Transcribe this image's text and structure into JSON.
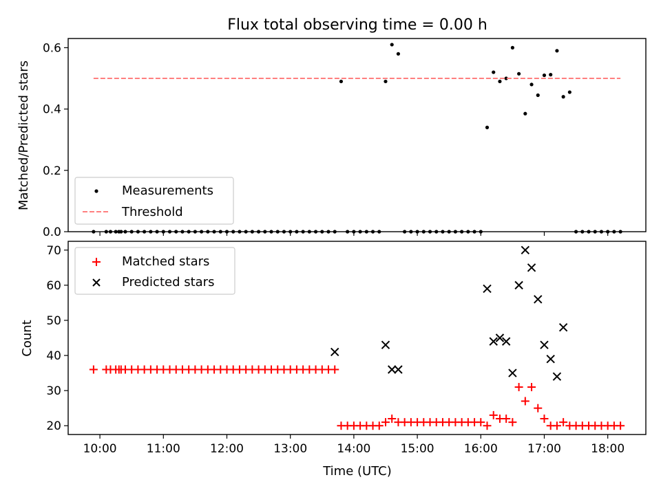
{
  "title": "Flux total observing time = 0.00 h",
  "colors": {
    "measurement": "#000000",
    "threshold": "#ff7f7f",
    "matched": "#ff0000",
    "predicted": "#000000",
    "axes": "#000000",
    "legend_border": "#cccccc"
  },
  "chart_data": [
    {
      "type": "scatter",
      "ylabel": "Matched/Predicted stars",
      "xlabel": "",
      "ylim": [
        0,
        0.63
      ],
      "xlim": [
        "09:30",
        "18:36"
      ],
      "yticks": [
        0.0,
        0.2,
        0.4,
        0.6
      ],
      "ytick_labels": [
        "0.0",
        "0.2",
        "0.4",
        "0.6"
      ],
      "xtick_values": [
        "10:00",
        "11:00",
        "12:00",
        "13:00",
        "14:00",
        "15:00",
        "16:00",
        "17:00",
        "18:00"
      ],
      "grid": false,
      "legend": {
        "placement": "lower-left",
        "entries": [
          "Measurements",
          "Threshold"
        ]
      },
      "series": [
        {
          "name": "Measurements",
          "marker": "dot",
          "x": [
            "09:54",
            "10:06",
            "10:10",
            "10:15",
            "10:18",
            "10:20",
            "10:24",
            "10:30",
            "10:36",
            "10:42",
            "10:48",
            "10:54",
            "11:00",
            "11:06",
            "11:12",
            "11:18",
            "11:24",
            "11:30",
            "11:36",
            "11:42",
            "11:48",
            "11:54",
            "12:00",
            "12:06",
            "12:12",
            "12:18",
            "12:24",
            "12:30",
            "12:36",
            "12:42",
            "12:48",
            "12:54",
            "13:00",
            "13:06",
            "13:12",
            "13:18",
            "13:24",
            "13:30",
            "13:36",
            "13:42",
            "13:48",
            "13:54",
            "14:00",
            "14:06",
            "14:12",
            "14:18",
            "14:24",
            "14:30",
            "14:36",
            "14:42",
            "14:48",
            "14:54",
            "15:00",
            "15:06",
            "15:12",
            "15:18",
            "15:24",
            "15:30",
            "15:36",
            "15:42",
            "15:48",
            "15:54",
            "16:00",
            "16:06",
            "16:12",
            "16:18",
            "16:24",
            "16:30",
            "16:36",
            "16:42",
            "16:48",
            "16:54",
            "17:00",
            "17:06",
            "17:12",
            "17:18",
            "17:24",
            "17:30",
            "17:36",
            "17:42",
            "17:48",
            "17:54",
            "18:00",
            "18:06",
            "18:12"
          ],
          "y": [
            0,
            0,
            0,
            0,
            0,
            0,
            0,
            0,
            0,
            0,
            0,
            0,
            0,
            0,
            0,
            0,
            0,
            0,
            0,
            0,
            0,
            0,
            0,
            0,
            0,
            0,
            0,
            0,
            0,
            0,
            0,
            0,
            0,
            0,
            0,
            0,
            0,
            0,
            0,
            0,
            0.49,
            0,
            0,
            0,
            0,
            0,
            0,
            0.49,
            0.61,
            0.58,
            0,
            0,
            0,
            0,
            0,
            0,
            0,
            0,
            0,
            0,
            0,
            0,
            0,
            0.34,
            0.52,
            0.49,
            0.5,
            0.6,
            0.515,
            0.385,
            0.48,
            0.445,
            0.51,
            0.512,
            0.59,
            0.44,
            0.455,
            0,
            0,
            0,
            0,
            0,
            0,
            0,
            0
          ]
        },
        {
          "name": "Threshold",
          "type": "line",
          "style": "dashed",
          "x": [
            "09:54",
            "18:12"
          ],
          "y": [
            0.5,
            0.5
          ]
        }
      ]
    },
    {
      "type": "scatter",
      "ylabel": "Count",
      "xlabel": "Time (UTC)",
      "ylim": [
        17.5,
        72.5
      ],
      "xlim": [
        "09:30",
        "18:36"
      ],
      "yticks": [
        20,
        30,
        40,
        50,
        60,
        70
      ],
      "ytick_labels": [
        "20",
        "30",
        "40",
        "50",
        "60",
        "70"
      ],
      "xtick_values": [
        "10:00",
        "11:00",
        "12:00",
        "13:00",
        "14:00",
        "15:00",
        "16:00",
        "17:00",
        "18:00"
      ],
      "xtick_labels": [
        "10:00",
        "11:00",
        "12:00",
        "13:00",
        "14:00",
        "15:00",
        "16:00",
        "17:00",
        "18:00"
      ],
      "grid": false,
      "legend": {
        "placement": "upper-left",
        "entries": [
          "Matched stars",
          "Predicted stars"
        ]
      },
      "series": [
        {
          "name": "Matched stars",
          "marker": "plus",
          "x": [
            "09:54",
            "10:06",
            "10:10",
            "10:15",
            "10:18",
            "10:20",
            "10:24",
            "10:30",
            "10:36",
            "10:42",
            "10:48",
            "10:54",
            "11:00",
            "11:06",
            "11:12",
            "11:18",
            "11:24",
            "11:30",
            "11:36",
            "11:42",
            "11:48",
            "11:54",
            "12:00",
            "12:06",
            "12:12",
            "12:18",
            "12:24",
            "12:30",
            "12:36",
            "12:42",
            "12:48",
            "12:54",
            "13:00",
            "13:06",
            "13:12",
            "13:18",
            "13:24",
            "13:30",
            "13:36",
            "13:42",
            "13:48",
            "13:54",
            "14:00",
            "14:06",
            "14:12",
            "14:18",
            "14:24",
            "14:30",
            "14:36",
            "14:42",
            "14:48",
            "14:54",
            "15:00",
            "15:06",
            "15:12",
            "15:18",
            "15:24",
            "15:30",
            "15:36",
            "15:42",
            "15:48",
            "15:54",
            "16:00",
            "16:06",
            "16:12",
            "16:18",
            "16:24",
            "16:30",
            "16:36",
            "16:42",
            "16:48",
            "16:54",
            "17:00",
            "17:06",
            "17:12",
            "17:18",
            "17:24",
            "17:30",
            "17:36",
            "17:42",
            "17:48",
            "17:54",
            "18:00",
            "18:06",
            "18:12"
          ],
          "y": [
            36,
            36,
            36,
            36,
            36,
            36,
            36,
            36,
            36,
            36,
            36,
            36,
            36,
            36,
            36,
            36,
            36,
            36,
            36,
            36,
            36,
            36,
            36,
            36,
            36,
            36,
            36,
            36,
            36,
            36,
            36,
            36,
            36,
            36,
            36,
            36,
            36,
            36,
            36,
            36,
            20,
            20,
            20,
            20,
            20,
            20,
            20,
            21,
            22,
            21,
            21,
            21,
            21,
            21,
            21,
            21,
            21,
            21,
            21,
            21,
            21,
            21,
            21,
            20,
            23,
            22,
            22,
            21,
            31,
            27,
            31,
            25,
            22,
            20,
            20,
            21,
            20,
            20,
            20,
            20,
            20,
            20,
            20,
            20,
            20
          ]
        },
        {
          "name": "Predicted stars",
          "marker": "x",
          "x": [
            "13:42",
            "14:30",
            "14:36",
            "14:42",
            "16:06",
            "16:12",
            "16:18",
            "16:24",
            "16:30",
            "16:36",
            "16:42",
            "16:48",
            "16:54",
            "17:00",
            "17:06",
            "17:12",
            "17:18"
          ],
          "y": [
            41,
            43,
            36,
            36,
            59,
            44,
            45,
            44,
            35,
            60,
            70,
            65,
            56,
            43,
            39,
            34,
            48
          ]
        }
      ]
    }
  ]
}
